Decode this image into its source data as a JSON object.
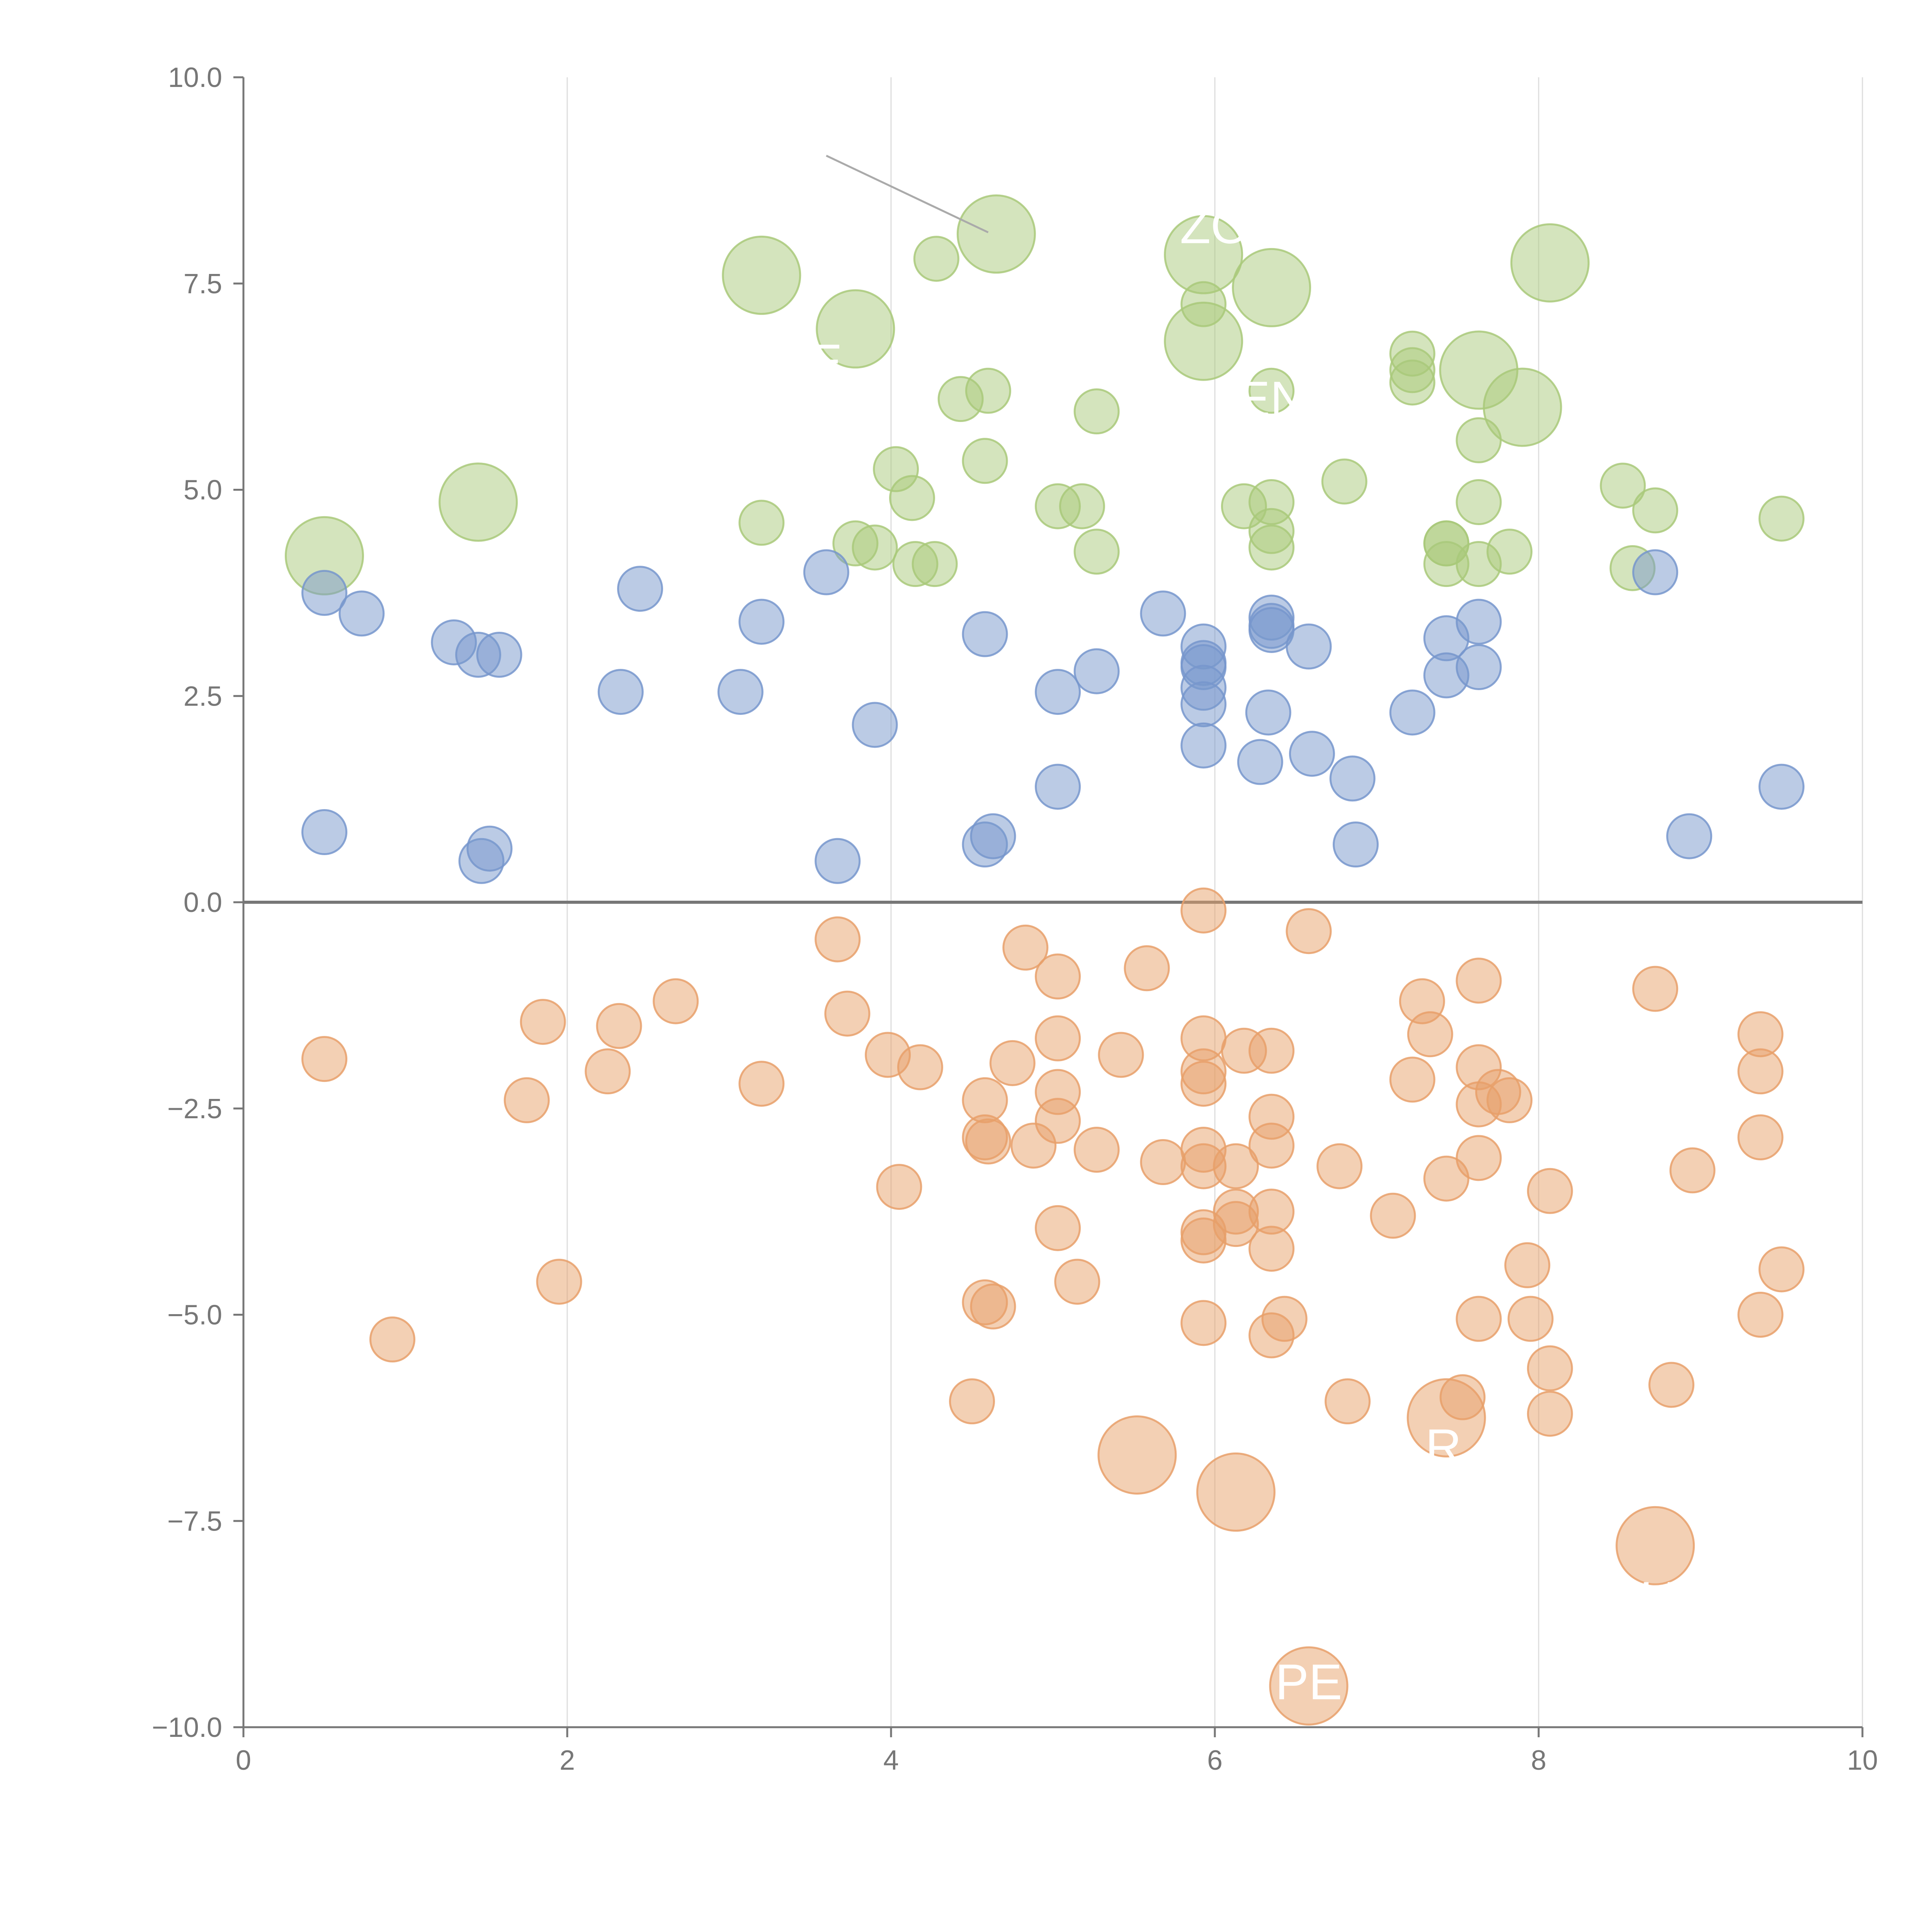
{
  "chart_data": {
    "type": "scatter",
    "title": "",
    "xlabel": "",
    "ylabel": "",
    "xlim": [
      0,
      10
    ],
    "ylim": [
      -10,
      10
    ],
    "x_ticks": [
      0,
      2,
      4,
      6,
      8,
      10
    ],
    "x_tick_labels": [
      "0",
      "2",
      "4",
      "6",
      "8",
      "10"
    ],
    "y_ticks": [
      10,
      7.5,
      5,
      2.5,
      0,
      -2.5,
      -5,
      -7.5,
      -10
    ],
    "y_tick_labels": [
      "10.0",
      "7.5",
      "5.0",
      "2.5",
      "0.0",
      "−2.5",
      "−5.0",
      "−7.5",
      "−10.0"
    ],
    "grid": "vertical",
    "colors": {
      "green": "#a9c97a",
      "blue": "#7797cc",
      "orange": "#e8a06a",
      "axis": "#777777",
      "grid": "#dddddd",
      "zero_line": "#777777"
    },
    "series": [
      {
        "name": "green",
        "color": "#a9c97a",
        "points": [
          [
            0.5,
            4.2,
            2
          ],
          [
            1.45,
            4.85,
            2
          ],
          [
            3.2,
            7.6,
            2
          ],
          [
            3.78,
            6.95,
            2
          ],
          [
            4.65,
            8.1,
            2
          ],
          [
            5.93,
            7.85,
            2
          ],
          [
            6.35,
            7.45,
            2
          ],
          [
            5.93,
            6.8,
            2
          ],
          [
            7.63,
            6.45,
            2
          ],
          [
            7.9,
            6.0,
            2
          ],
          [
            8.07,
            7.75,
            2
          ],
          [
            4.28,
            7.8,
            1
          ],
          [
            5.93,
            7.25,
            1
          ],
          [
            6.35,
            6.2,
            1
          ],
          [
            4.43,
            6.1,
            1
          ],
          [
            4.6,
            6.2,
            1
          ],
          [
            5.27,
            5.95,
            1
          ],
          [
            7.22,
            6.65,
            1
          ],
          [
            7.22,
            6.45,
            1
          ],
          [
            7.22,
            6.3,
            1
          ],
          [
            7.63,
            5.6,
            1
          ],
          [
            4.03,
            5.25,
            1
          ],
          [
            4.13,
            4.9,
            1
          ],
          [
            4.58,
            5.35,
            1
          ],
          [
            3.2,
            4.6,
            1
          ],
          [
            3.78,
            4.35,
            1
          ],
          [
            3.9,
            4.3,
            1
          ],
          [
            4.15,
            4.1,
            1
          ],
          [
            4.27,
            4.1,
            1
          ],
          [
            5.03,
            4.8,
            1
          ],
          [
            5.18,
            4.8,
            1
          ],
          [
            5.27,
            4.25,
            1
          ],
          [
            6.18,
            4.8,
            1
          ],
          [
            6.35,
            4.85,
            1
          ],
          [
            6.35,
            4.5,
            1
          ],
          [
            6.35,
            4.3,
            1
          ],
          [
            6.8,
            5.1,
            1
          ],
          [
            7.43,
            4.35,
            1
          ],
          [
            7.43,
            4.35,
            1
          ],
          [
            7.43,
            4.1,
            1
          ],
          [
            7.63,
            4.85,
            1
          ],
          [
            7.63,
            4.1,
            1
          ],
          [
            7.82,
            4.25,
            1
          ],
          [
            8.52,
            5.05,
            1
          ],
          [
            8.58,
            4.05,
            1
          ],
          [
            8.72,
            4.75,
            1
          ],
          [
            9.5,
            4.65,
            1
          ]
        ]
      },
      {
        "name": "blue",
        "color": "#7797cc",
        "points": [
          [
            0.5,
            3.75,
            1
          ],
          [
            0.73,
            3.5,
            1
          ],
          [
            1.3,
            3.15,
            1
          ],
          [
            1.45,
            3.0,
            1
          ],
          [
            1.58,
            3.0,
            1
          ],
          [
            2.33,
            2.55,
            1
          ],
          [
            2.45,
            3.8,
            1
          ],
          [
            3.07,
            2.55,
            1
          ],
          [
            3.2,
            3.4,
            1
          ],
          [
            3.6,
            4.0,
            1
          ],
          [
            3.9,
            2.15,
            1
          ],
          [
            0.5,
            0.85,
            1
          ],
          [
            1.47,
            0.5,
            1
          ],
          [
            1.52,
            0.65,
            1
          ],
          [
            3.67,
            0.5,
            1
          ],
          [
            4.58,
            3.25,
            1
          ],
          [
            4.58,
            0.7,
            1
          ],
          [
            4.63,
            0.8,
            1
          ],
          [
            5.03,
            2.55,
            1
          ],
          [
            5.03,
            1.4,
            1
          ],
          [
            5.27,
            2.8,
            1
          ],
          [
            5.68,
            3.5,
            1
          ],
          [
            5.93,
            3.1,
            1
          ],
          [
            5.93,
            2.9,
            1
          ],
          [
            5.93,
            2.85,
            1
          ],
          [
            5.93,
            2.6,
            1
          ],
          [
            5.93,
            2.4,
            1
          ],
          [
            5.93,
            1.9,
            1
          ],
          [
            6.28,
            1.7,
            1
          ],
          [
            6.35,
            3.45,
            1
          ],
          [
            6.35,
            3.35,
            1
          ],
          [
            6.35,
            3.3,
            1
          ],
          [
            6.33,
            2.3,
            1
          ],
          [
            6.58,
            3.1,
            1
          ],
          [
            6.6,
            1.8,
            1
          ],
          [
            6.85,
            1.5,
            1
          ],
          [
            6.87,
            0.7,
            1
          ],
          [
            7.22,
            2.3,
            1
          ],
          [
            7.43,
            3.2,
            1
          ],
          [
            7.43,
            2.75,
            1
          ],
          [
            7.63,
            3.4,
            1
          ],
          [
            7.63,
            2.85,
            1
          ],
          [
            8.72,
            4.0,
            1
          ],
          [
            8.93,
            0.8,
            1
          ],
          [
            9.5,
            1.4,
            1
          ]
        ]
      },
      {
        "name": "orange",
        "color": "#e8a06a",
        "points": [
          [
            0.5,
            -1.9,
            1
          ],
          [
            0.92,
            -5.3,
            1
          ],
          [
            1.75,
            -2.4,
            1
          ],
          [
            1.85,
            -1.45,
            1
          ],
          [
            1.95,
            -4.6,
            1
          ],
          [
            2.25,
            -2.05,
            1
          ],
          [
            2.32,
            -1.5,
            1
          ],
          [
            2.67,
            -1.2,
            1
          ],
          [
            3.2,
            -2.2,
            1
          ],
          [
            3.67,
            -0.45,
            1
          ],
          [
            3.73,
            -1.35,
            1
          ],
          [
            3.98,
            -1.85,
            1
          ],
          [
            4.05,
            -3.45,
            1
          ],
          [
            4.18,
            -2.0,
            1
          ],
          [
            4.5,
            -6.05,
            1
          ],
          [
            4.58,
            -2.4,
            1
          ],
          [
            4.58,
            -2.85,
            1
          ],
          [
            4.6,
            -2.9,
            1
          ],
          [
            4.58,
            -4.85,
            1
          ],
          [
            4.63,
            -4.9,
            1
          ],
          [
            4.75,
            -1.95,
            1
          ],
          [
            4.83,
            -0.55,
            1
          ],
          [
            4.88,
            -2.95,
            1
          ],
          [
            5.03,
            -0.9,
            1
          ],
          [
            5.03,
            -1.65,
            1
          ],
          [
            5.03,
            -2.3,
            1
          ],
          [
            5.03,
            -2.65,
            1
          ],
          [
            5.03,
            -3.95,
            1
          ],
          [
            5.15,
            -4.6,
            1
          ],
          [
            5.27,
            -3.0,
            1
          ],
          [
            5.42,
            -1.85,
            1
          ],
          [
            5.58,
            -0.8,
            1
          ],
          [
            5.68,
            -3.15,
            1
          ],
          [
            5.93,
            -0.1,
            1
          ],
          [
            5.93,
            -1.65,
            1
          ],
          [
            5.93,
            -2.05,
            1
          ],
          [
            5.93,
            -2.2,
            1
          ],
          [
            5.93,
            -3.0,
            1
          ],
          [
            5.93,
            -3.2,
            1
          ],
          [
            5.93,
            -4.0,
            1
          ],
          [
            5.93,
            -4.1,
            1
          ],
          [
            5.93,
            -5.1,
            1
          ],
          [
            6.13,
            -3.2,
            1
          ],
          [
            6.13,
            -3.75,
            1
          ],
          [
            6.13,
            -3.9,
            1
          ],
          [
            6.18,
            -1.8,
            1
          ],
          [
            6.35,
            -1.8,
            1
          ],
          [
            6.35,
            -2.6,
            1
          ],
          [
            6.35,
            -2.95,
            1
          ],
          [
            6.35,
            -3.75,
            1
          ],
          [
            6.35,
            -4.2,
            1
          ],
          [
            6.35,
            -5.25,
            1
          ],
          [
            6.43,
            -5.05,
            1
          ],
          [
            6.58,
            -0.35,
            1
          ],
          [
            6.77,
            -3.2,
            1
          ],
          [
            6.82,
            -6.05,
            1
          ],
          [
            7.1,
            -3.8,
            1
          ],
          [
            7.22,
            -2.15,
            1
          ],
          [
            7.28,
            -1.2,
            1
          ],
          [
            7.33,
            -1.6,
            1
          ],
          [
            7.43,
            -3.35,
            1
          ],
          [
            7.53,
            -6.0,
            1
          ],
          [
            7.63,
            -0.95,
            1
          ],
          [
            7.63,
            -2.0,
            1
          ],
          [
            7.63,
            -2.45,
            1
          ],
          [
            7.63,
            -3.1,
            1
          ],
          [
            7.63,
            -5.05,
            1
          ],
          [
            7.75,
            -2.3,
            1
          ],
          [
            7.82,
            -2.4,
            1
          ],
          [
            7.93,
            -4.4,
            1
          ],
          [
            7.95,
            -5.05,
            1
          ],
          [
            8.07,
            -3.5,
            1
          ],
          [
            8.07,
            -5.65,
            1
          ],
          [
            8.07,
            -6.2,
            1
          ],
          [
            8.72,
            -1.05,
            1
          ],
          [
            8.82,
            -5.85,
            1
          ],
          [
            9.37,
            -1.6,
            1
          ],
          [
            9.37,
            -2.05,
            1
          ],
          [
            9.37,
            -2.85,
            1
          ],
          [
            9.37,
            -5.0,
            1
          ],
          [
            9.5,
            -4.45,
            1
          ],
          [
            8.95,
            -3.25,
            1
          ],
          [
            5.52,
            -6.7,
            2
          ],
          [
            6.13,
            -7.15,
            2
          ],
          [
            7.43,
            -6.25,
            2
          ],
          [
            8.72,
            -7.8,
            2
          ],
          [
            6.58,
            -9.5,
            2
          ]
        ]
      }
    ],
    "annotations": [
      {
        "text": "ZO",
        "x": 6.0,
        "y": 8.2,
        "anchor": "middle"
      },
      {
        "text": "E",
        "x": 3.7,
        "y": 6.55,
        "anchor": "end"
      },
      {
        "text": "EN",
        "x": 6.35,
        "y": 6.1,
        "anchor": "middle"
      },
      {
        "text": "PE",
        "x": 6.58,
        "y": -9.45,
        "anchor": "middle"
      },
      {
        "text": "R",
        "x": 7.3,
        "y": -6.6,
        "anchor": "start"
      },
      {
        "text": "UD",
        "x": 8.85,
        "y": -8.45,
        "anchor": "middle"
      }
    ]
  }
}
